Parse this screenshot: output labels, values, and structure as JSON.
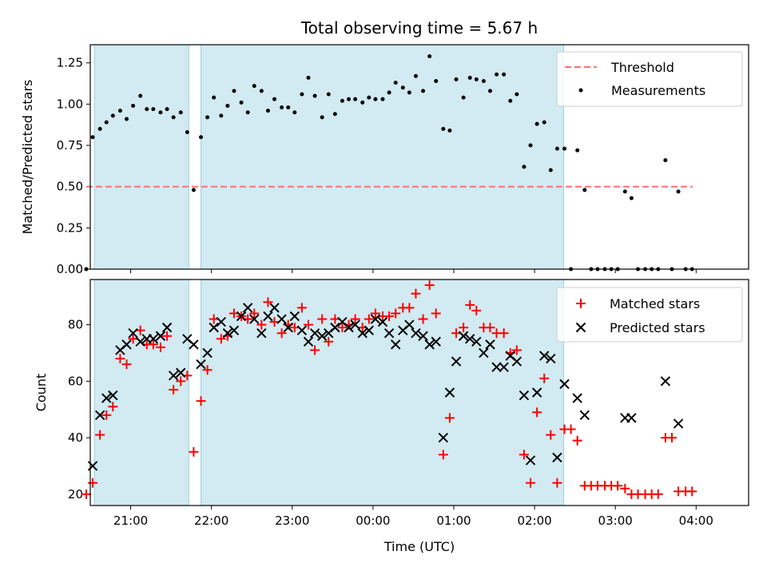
{
  "chart_data": [
    {
      "type": "scatter",
      "title": "Total observing time = 5.67 h",
      "ylabel": "Matched/Predicted stars",
      "xlabel": "",
      "ylim": [
        0,
        1.36
      ],
      "y_ticks": [
        "0.00",
        "0.25",
        "0.50",
        "0.75",
        "1.00",
        "1.25"
      ],
      "x_ticks": [
        "21:00",
        "22:00",
        "23:00",
        "00:00",
        "01:00",
        "02:00",
        "03:00",
        "04:00"
      ],
      "x_range_hours_since_midnight": [
        -3.5,
        4.65
      ],
      "shaded_intervals": [
        [
          -3.45,
          -2.28
        ],
        [
          -2.13,
          2.36
        ]
      ],
      "legend": {
        "position": "top-right",
        "entries": [
          "Threshold",
          "Measurements"
        ]
      },
      "threshold": {
        "name": "Threshold",
        "value": 0.5,
        "color": "#ff7070",
        "x_range": [
          -3.55,
          3.96
        ]
      },
      "series": [
        {
          "name": "Measurements",
          "color": "#000000",
          "points": [
            [
              -3.55,
              0.0
            ],
            [
              -3.47,
              0.8
            ],
            [
              -3.38,
              0.85
            ],
            [
              -3.3,
              0.89
            ],
            [
              -3.22,
              0.93
            ],
            [
              -3.13,
              0.96
            ],
            [
              -3.05,
              0.91
            ],
            [
              -2.97,
              0.99
            ],
            [
              -2.88,
              1.05
            ],
            [
              -2.8,
              0.97
            ],
            [
              -2.72,
              0.97
            ],
            [
              -2.63,
              0.95
            ],
            [
              -2.55,
              0.97
            ],
            [
              -2.47,
              0.92
            ],
            [
              -2.38,
              0.95
            ],
            [
              -2.3,
              0.83
            ],
            [
              -2.22,
              0.48
            ],
            [
              -2.13,
              0.8
            ],
            [
              -2.05,
              0.92
            ],
            [
              -1.97,
              1.04
            ],
            [
              -1.88,
              0.93
            ],
            [
              -1.8,
              0.99
            ],
            [
              -1.72,
              1.08
            ],
            [
              -1.63,
              1.01
            ],
            [
              -1.55,
              0.95
            ],
            [
              -1.47,
              1.11
            ],
            [
              -1.38,
              1.08
            ],
            [
              -1.3,
              0.96
            ],
            [
              -1.22,
              1.03
            ],
            [
              -1.13,
              0.98
            ],
            [
              -1.05,
              0.98
            ],
            [
              -0.97,
              0.95
            ],
            [
              -0.88,
              1.06
            ],
            [
              -0.8,
              1.16
            ],
            [
              -0.72,
              1.05
            ],
            [
              -0.63,
              0.92
            ],
            [
              -0.55,
              1.06
            ],
            [
              -0.47,
              0.94
            ],
            [
              -0.38,
              1.02
            ],
            [
              -0.3,
              1.03
            ],
            [
              -0.22,
              1.03
            ],
            [
              -0.13,
              1.01
            ],
            [
              -0.05,
              1.04
            ],
            [
              0.03,
              1.03
            ],
            [
              0.12,
              1.03
            ],
            [
              0.2,
              1.07
            ],
            [
              0.28,
              1.13
            ],
            [
              0.37,
              1.1
            ],
            [
              0.45,
              1.07
            ],
            [
              0.53,
              1.17
            ],
            [
              0.62,
              1.08
            ],
            [
              0.7,
              1.29
            ],
            [
              0.78,
              1.14
            ],
            [
              0.87,
              0.85
            ],
            [
              0.95,
              0.84
            ],
            [
              1.03,
              1.15
            ],
            [
              1.12,
              1.04
            ],
            [
              1.2,
              1.16
            ],
            [
              1.28,
              1.15
            ],
            [
              1.37,
              1.14
            ],
            [
              1.45,
              1.08
            ],
            [
              1.53,
              1.18
            ],
            [
              1.62,
              1.18
            ],
            [
              1.7,
              1.02
            ],
            [
              1.78,
              1.06
            ],
            [
              1.87,
              0.62
            ],
            [
              1.95,
              0.75
            ],
            [
              2.03,
              0.88
            ],
            [
              2.12,
              0.89
            ],
            [
              2.2,
              0.6
            ],
            [
              2.28,
              0.73
            ],
            [
              2.37,
              0.73
            ],
            [
              2.45,
              0.0
            ],
            [
              2.53,
              0.72
            ],
            [
              2.62,
              0.48
            ],
            [
              2.7,
              0.0
            ],
            [
              2.78,
              0.0
            ],
            [
              2.87,
              0.0
            ],
            [
              2.95,
              0.0
            ],
            [
              3.03,
              0.0
            ],
            [
              3.12,
              0.47
            ],
            [
              3.2,
              0.43
            ],
            [
              3.28,
              0.0
            ],
            [
              3.37,
              0.0
            ],
            [
              3.45,
              0.0
            ],
            [
              3.53,
              0.0
            ],
            [
              3.62,
              0.66
            ],
            [
              3.7,
              0.0
            ],
            [
              3.78,
              0.47
            ],
            [
              3.87,
              0.0
            ],
            [
              3.95,
              0.0
            ]
          ]
        }
      ]
    },
    {
      "type": "scatter",
      "title": "",
      "xlabel": "Time (UTC)",
      "ylabel": "Count",
      "ylim": [
        16,
        96
      ],
      "y_ticks": [
        "20",
        "40",
        "60",
        "80"
      ],
      "x_ticks": [
        "21:00",
        "22:00",
        "23:00",
        "00:00",
        "01:00",
        "02:00",
        "03:00",
        "04:00"
      ],
      "x_range_hours_since_midnight": [
        -3.5,
        4.65
      ],
      "shaded_intervals": [
        [
          -3.45,
          -2.28
        ],
        [
          -2.13,
          2.36
        ]
      ],
      "legend": {
        "position": "top-right",
        "entries": [
          "Matched stars",
          "Predicted stars"
        ]
      },
      "series": [
        {
          "name": "Matched stars",
          "marker": "plus",
          "color": "#ff0000",
          "points": [
            [
              -3.55,
              20
            ],
            [
              -3.47,
              24
            ],
            [
              -3.38,
              41
            ],
            [
              -3.3,
              48
            ],
            [
              -3.22,
              51
            ],
            [
              -3.13,
              68
            ],
            [
              -3.05,
              66
            ],
            [
              -2.97,
              75
            ],
            [
              -2.88,
              78
            ],
            [
              -2.8,
              73
            ],
            [
              -2.72,
              73
            ],
            [
              -2.63,
              72
            ],
            [
              -2.55,
              76
            ],
            [
              -2.47,
              57
            ],
            [
              -2.38,
              60
            ],
            [
              -2.3,
              62
            ],
            [
              -2.22,
              35
            ],
            [
              -2.13,
              53
            ],
            [
              -2.05,
              64
            ],
            [
              -1.97,
              82
            ],
            [
              -1.88,
              75
            ],
            [
              -1.8,
              76
            ],
            [
              -1.72,
              84
            ],
            [
              -1.63,
              83
            ],
            [
              -1.55,
              82
            ],
            [
              -1.47,
              84
            ],
            [
              -1.38,
              80
            ],
            [
              -1.3,
              88
            ],
            [
              -1.22,
              81
            ],
            [
              -1.13,
              77
            ],
            [
              -1.05,
              80
            ],
            [
              -0.97,
              79
            ],
            [
              -0.88,
              86
            ],
            [
              -0.8,
              80
            ],
            [
              -0.72,
              71
            ],
            [
              -0.63,
              82
            ],
            [
              -0.55,
              74
            ],
            [
              -0.47,
              82
            ],
            [
              -0.38,
              79
            ],
            [
              -0.3,
              80
            ],
            [
              -0.22,
              82
            ],
            [
              -0.13,
              79
            ],
            [
              -0.05,
              82
            ],
            [
              0.03,
              84
            ],
            [
              0.12,
              83
            ],
            [
              0.2,
              83
            ],
            [
              0.28,
              84
            ],
            [
              0.37,
              86
            ],
            [
              0.45,
              86
            ],
            [
              0.53,
              91
            ],
            [
              0.62,
              82
            ],
            [
              0.7,
              94
            ],
            [
              0.78,
              84
            ],
            [
              0.87,
              34
            ],
            [
              0.95,
              47
            ],
            [
              1.03,
              77
            ],
            [
              1.12,
              79
            ],
            [
              1.2,
              87
            ],
            [
              1.28,
              85
            ],
            [
              1.37,
              79
            ],
            [
              1.45,
              79
            ],
            [
              1.53,
              77
            ],
            [
              1.62,
              77
            ],
            [
              1.7,
              70
            ],
            [
              1.78,
              71
            ],
            [
              1.87,
              34
            ],
            [
              1.95,
              24
            ],
            [
              2.03,
              49
            ],
            [
              2.12,
              61
            ],
            [
              2.2,
              41
            ],
            [
              2.28,
              24
            ],
            [
              2.37,
              43
            ],
            [
              2.45,
              43
            ],
            [
              2.53,
              39
            ],
            [
              2.62,
              23
            ],
            [
              2.7,
              23
            ],
            [
              2.78,
              23
            ],
            [
              2.87,
              23
            ],
            [
              2.95,
              23
            ],
            [
              3.03,
              23
            ],
            [
              3.12,
              22
            ],
            [
              3.2,
              20
            ],
            [
              3.28,
              20
            ],
            [
              3.37,
              20
            ],
            [
              3.45,
              20
            ],
            [
              3.53,
              20
            ],
            [
              3.62,
              40
            ],
            [
              3.7,
              40
            ],
            [
              3.78,
              21
            ],
            [
              3.87,
              21
            ],
            [
              3.95,
              21
            ]
          ]
        },
        {
          "name": "Predicted stars",
          "marker": "x",
          "color": "#000000",
          "points": [
            [
              -3.47,
              30
            ],
            [
              -3.38,
              48
            ],
            [
              -3.3,
              54
            ],
            [
              -3.22,
              55
            ],
            [
              -3.13,
              71
            ],
            [
              -3.05,
              73
            ],
            [
              -2.97,
              77
            ],
            [
              -2.88,
              74
            ],
            [
              -2.8,
              75
            ],
            [
              -2.72,
              75
            ],
            [
              -2.63,
              76
            ],
            [
              -2.55,
              79
            ],
            [
              -2.47,
              62
            ],
            [
              -2.38,
              63
            ],
            [
              -2.3,
              75
            ],
            [
              -2.22,
              73
            ],
            [
              -2.13,
              66
            ],
            [
              -2.05,
              70
            ],
            [
              -1.97,
              79
            ],
            [
              -1.88,
              81
            ],
            [
              -1.8,
              77
            ],
            [
              -1.72,
              78
            ],
            [
              -1.63,
              83
            ],
            [
              -1.55,
              86
            ],
            [
              -1.47,
              82
            ],
            [
              -1.38,
              77
            ],
            [
              -1.3,
              83
            ],
            [
              -1.22,
              86
            ],
            [
              -1.13,
              82
            ],
            [
              -1.05,
              79
            ],
            [
              -0.97,
              83
            ],
            [
              -0.88,
              78
            ],
            [
              -0.8,
              74
            ],
            [
              -0.72,
              77
            ],
            [
              -0.63,
              76
            ],
            [
              -0.55,
              77
            ],
            [
              -0.47,
              79
            ],
            [
              -0.38,
              81
            ],
            [
              -0.3,
              79
            ],
            [
              -0.22,
              80
            ],
            [
              -0.13,
              77
            ],
            [
              -0.05,
              78
            ],
            [
              0.03,
              82
            ],
            [
              0.12,
              81
            ],
            [
              0.2,
              77
            ],
            [
              0.28,
              73
            ],
            [
              0.37,
              78
            ],
            [
              0.45,
              80
            ],
            [
              0.53,
              77
            ],
            [
              0.62,
              76
            ],
            [
              0.7,
              73
            ],
            [
              0.78,
              74
            ],
            [
              0.87,
              40
            ],
            [
              0.95,
              56
            ],
            [
              1.03,
              67
            ],
            [
              1.12,
              76
            ],
            [
              1.2,
              75
            ],
            [
              1.28,
              74
            ],
            [
              1.37,
              70
            ],
            [
              1.45,
              73
            ],
            [
              1.53,
              65
            ],
            [
              1.62,
              65
            ],
            [
              1.7,
              69
            ],
            [
              1.78,
              67
            ],
            [
              1.87,
              55
            ],
            [
              1.95,
              32
            ],
            [
              2.03,
              56
            ],
            [
              2.12,
              69
            ],
            [
              2.2,
              68
            ],
            [
              2.28,
              33
            ],
            [
              2.37,
              59
            ],
            [
              2.53,
              54
            ],
            [
              2.62,
              48
            ],
            [
              3.12,
              47
            ],
            [
              3.2,
              47
            ],
            [
              3.62,
              60
            ],
            [
              3.78,
              45
            ]
          ]
        }
      ]
    }
  ]
}
